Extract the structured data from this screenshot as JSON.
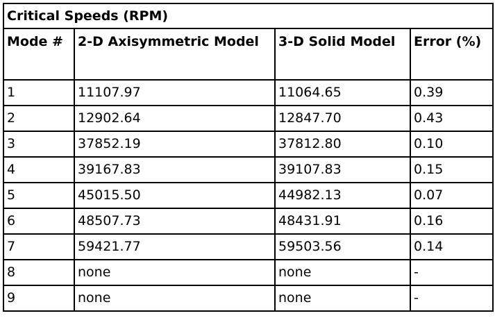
{
  "table": {
    "title": "Critical Speeds (RPM)",
    "headers": [
      "Mode #",
      "2-D Axisymmetric Model",
      "3-D Solid Model",
      "Error (%)"
    ],
    "rows": [
      [
        "1",
        "11107.97",
        "11064.65",
        "0.39"
      ],
      [
        "2",
        "12902.64",
        "12847.70",
        "0.43"
      ],
      [
        "3",
        "37852.19",
        "37812.80",
        "0.10"
      ],
      [
        "4",
        "39167.83",
        "39107.83",
        "0.15"
      ],
      [
        "5",
        "45015.50",
        "44982.13",
        "0.07"
      ],
      [
        "6",
        "48507.73",
        "48431.91",
        "0.16"
      ],
      [
        "7",
        "59421.77",
        "59503.56",
        "0.14"
      ],
      [
        "8",
        "none",
        "none",
        "-"
      ],
      [
        "9",
        "none",
        "none",
        "-"
      ]
    ]
  }
}
